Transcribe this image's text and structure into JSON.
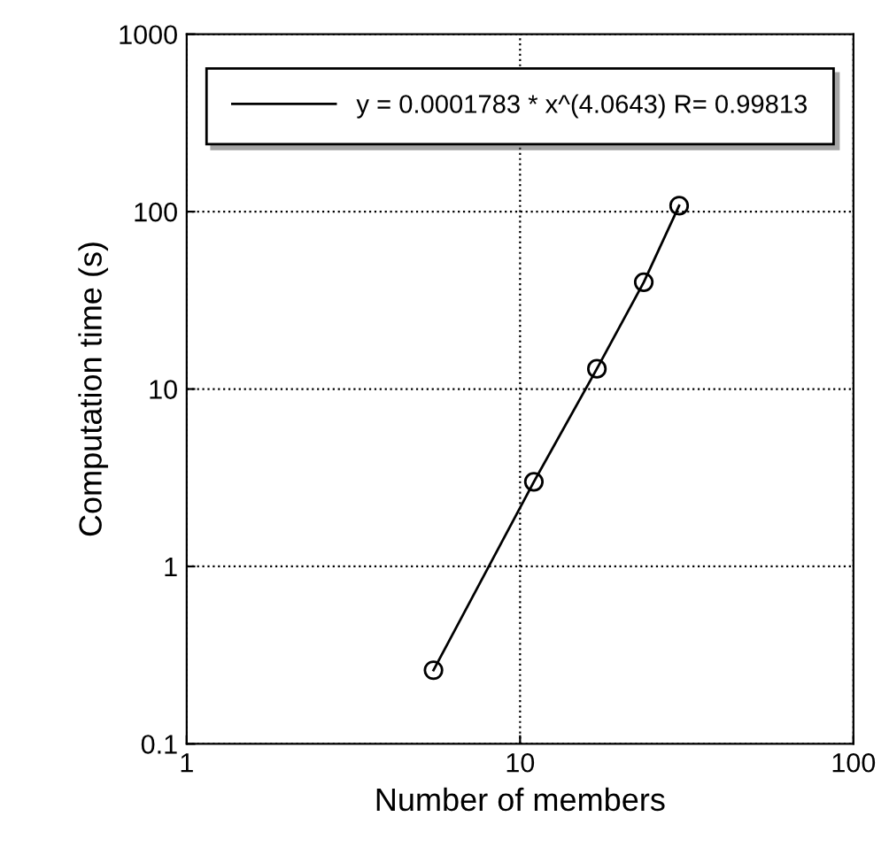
{
  "chart_data": {
    "type": "line",
    "xlabel": "Number of members",
    "ylabel": "Computation time (s)",
    "log": "xy",
    "xlim": [
      1,
      100
    ],
    "ylim": [
      0.1,
      1000
    ],
    "xticks": [
      1,
      10,
      100
    ],
    "yticks": [
      0.1,
      1,
      10,
      100,
      1000
    ],
    "grid": true,
    "legend": "top",
    "marker": "circle",
    "series": [
      {
        "name": "y = 0.0001783 * x^(4.0643) R= 0.99813",
        "color": "#000000",
        "x": [
          5.5,
          11,
          17,
          23.5,
          30
        ],
        "values": [
          0.26,
          3,
          13,
          40,
          108
        ]
      }
    ]
  }
}
